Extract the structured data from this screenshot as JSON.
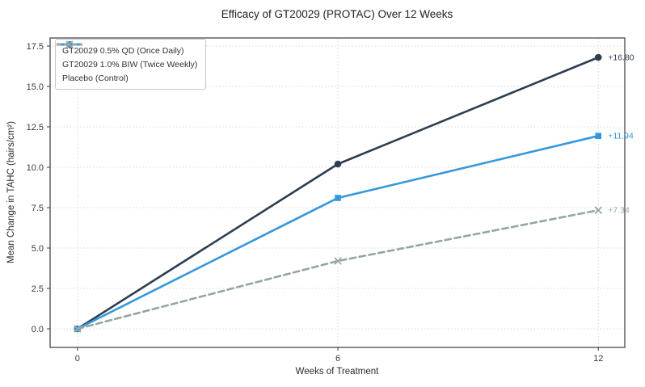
{
  "chart_data": {
    "type": "line",
    "title": "Efficacy of GT20029 (PROTAC) Over 12 Weeks",
    "xlabel": "Weeks of Treatment",
    "ylabel": "Mean Change in TAHC (hairs/cm²)",
    "x": [
      0,
      6,
      12
    ],
    "xlim": [
      -0.63,
      12.61
    ],
    "ylim": [
      -1.15,
      18.0
    ],
    "xticks": {
      "values": [
        0,
        6,
        12
      ],
      "labels": [
        "0",
        "6",
        "12"
      ]
    },
    "yticks": {
      "values": [
        0.0,
        2.5,
        5.0,
        7.5,
        10.0,
        12.5,
        15.0,
        17.5
      ],
      "labels": [
        "0.0",
        "2.5",
        "5.0",
        "7.5",
        "10.0",
        "12.5",
        "15.0",
        "17.5"
      ]
    },
    "grid": true,
    "grid_style": "dotted",
    "legend_position": "upper left",
    "series": [
      {
        "name": "GT20029 0.5% QD (Once Daily)",
        "values": [
          0.0,
          10.2,
          16.8
        ],
        "color": "#2c3e50",
        "marker": "circle",
        "line_style": "solid",
        "end_label": "+16.80"
      },
      {
        "name": "GT20029 1.0% BIW (Twice Weekly)",
        "values": [
          0.0,
          8.1,
          11.94
        ],
        "color": "#3498db",
        "marker": "square",
        "line_style": "solid",
        "end_label": "+11.94"
      },
      {
        "name": "Placebo (Control)",
        "values": [
          0.0,
          4.2,
          7.34
        ],
        "color": "#95a5a6",
        "marker": "x",
        "line_style": "dashed",
        "end_label": "+7.34"
      }
    ]
  }
}
